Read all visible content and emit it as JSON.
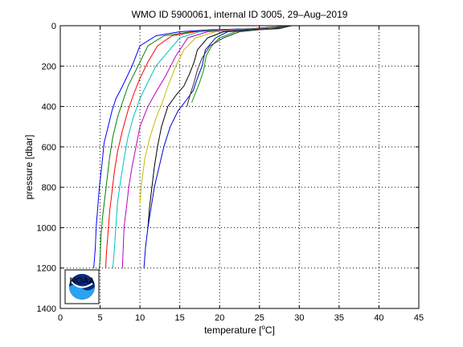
{
  "chart_data": {
    "type": "line",
    "title": "WMO ID 5900061, internal ID 3005, 29–Aug–2019",
    "xlabel_prefix": "temperature [",
    "xlabel_sup": "o",
    "xlabel_suffix": "C]",
    "ylabel": "pressure [dbar]",
    "xlim": [
      0,
      45
    ],
    "ylim": [
      0,
      1400
    ],
    "y_reversed": true,
    "grid": true,
    "grid_style": "dotted",
    "xticks": [
      0,
      5,
      10,
      15,
      20,
      25,
      30,
      35,
      40,
      45
    ],
    "yticks": [
      0,
      200,
      400,
      600,
      800,
      1000,
      1200,
      1400
    ],
    "logo": "NOAA",
    "series": [
      {
        "color": "#0000ff",
        "x": [
          29.0,
          24.0,
          19.0,
          15.0,
          12.0,
          10.0,
          9.0,
          7.8,
          7.0,
          6.5,
          6.0,
          5.5,
          5.2,
          4.9,
          4.7,
          4.5,
          4.4,
          4.3,
          4.2
        ],
        "y": [
          0,
          15,
          20,
          30,
          50,
          100,
          200,
          300,
          360,
          420,
          500,
          580,
          700,
          800,
          900,
          1000,
          1100,
          1150,
          1200
        ]
      },
      {
        "color": "#008000",
        "x": [
          29.0,
          24.0,
          20.0,
          16.5,
          13.0,
          11.0,
          10.0,
          8.5,
          7.8,
          7.2,
          6.6,
          6.2,
          5.9,
          5.6,
          5.3,
          5.1,
          5.0,
          4.9,
          4.8
        ],
        "y": [
          0,
          15,
          20,
          30,
          50,
          100,
          180,
          300,
          380,
          450,
          550,
          650,
          750,
          850,
          950,
          1050,
          1150,
          1200,
          1220
        ]
      },
      {
        "color": "#ff0000",
        "x": [
          29.0,
          24.5,
          21.0,
          17.0,
          14.0,
          12.2,
          11.0,
          10.0,
          9.2,
          8.5,
          7.8,
          7.2,
          6.8,
          6.5,
          6.2,
          6.0,
          5.8,
          5.7
        ],
        "y": [
          0,
          15,
          20,
          30,
          50,
          100,
          180,
          260,
          340,
          420,
          520,
          620,
          720,
          820,
          920,
          1020,
          1120,
          1200
        ]
      },
      {
        "color": "#00bfbf",
        "x": [
          29.0,
          25.0,
          21.5,
          17.5,
          15.0,
          13.5,
          12.0,
          11.0,
          10.0,
          9.2,
          8.5,
          8.0,
          7.6,
          7.2,
          7.0,
          6.8,
          6.6
        ],
        "y": [
          0,
          15,
          20,
          30,
          60,
          130,
          200,
          280,
          360,
          450,
          550,
          660,
          760,
          870,
          980,
          1100,
          1200
        ]
      },
      {
        "color": "#bf00bf",
        "x": [
          29.0,
          25.5,
          22.0,
          18.5,
          16.0,
          14.5,
          13.2,
          12.0,
          11.0,
          10.0,
          9.5,
          9.0,
          8.6,
          8.3,
          8.0,
          7.8
        ],
        "y": [
          0,
          15,
          20,
          30,
          60,
          150,
          250,
          330,
          400,
          500,
          600,
          700,
          800,
          900,
          1000,
          1200
        ]
      },
      {
        "color": "#bfbf00",
        "x": [
          29.0,
          26.0,
          23.0,
          19.5,
          17.0,
          15.5,
          14.5,
          13.5,
          12.8,
          12.0,
          11.2,
          10.6,
          10.2,
          10.0
        ],
        "y": [
          0,
          15,
          20,
          30,
          60,
          120,
          200,
          300,
          380,
          460,
          560,
          660,
          780,
          880
        ]
      },
      {
        "color": "#000000",
        "x": [
          29.0,
          26.5,
          23.5,
          20.5,
          18.5,
          17.2,
          16.8,
          16.2,
          15.5,
          14.6,
          13.5,
          12.7,
          12.2,
          11.8,
          11.5,
          11.2,
          11.0
        ],
        "y": [
          0,
          15,
          20,
          30,
          60,
          120,
          180,
          240,
          300,
          340,
          400,
          500,
          600,
          700,
          800,
          900,
          1000
        ]
      },
      {
        "color": "#0000cc",
        "x": [
          29.0,
          27.0,
          24.0,
          21.0,
          19.5,
          18.2,
          17.8,
          17.2,
          16.7,
          15.8,
          14.8,
          13.8,
          13.0,
          12.4,
          11.8,
          11.4,
          11.0,
          10.7,
          10.5
        ],
        "y": [
          0,
          15,
          20,
          30,
          60,
          120,
          200,
          260,
          320,
          370,
          420,
          500,
          600,
          700,
          800,
          900,
          1000,
          1100,
          1200
        ]
      },
      {
        "color": "#00a000",
        "x": [
          29.0,
          27.2,
          24.5,
          22.0,
          20.0,
          19.0,
          18.3,
          18.0,
          17.5,
          17.0,
          16.5
        ],
        "y": [
          0,
          15,
          20,
          30,
          60,
          100,
          150,
          220,
          280,
          330,
          380
        ]
      },
      {
        "color": "#333333",
        "x": [
          29.0,
          27.5,
          25.0,
          22.5,
          20.5,
          18.8,
          17.8,
          17.2,
          16.8,
          16.4,
          16.1,
          15.9
        ],
        "y": [
          0,
          15,
          20,
          30,
          60,
          100,
          160,
          220,
          280,
          330,
          370,
          400
        ]
      }
    ]
  }
}
